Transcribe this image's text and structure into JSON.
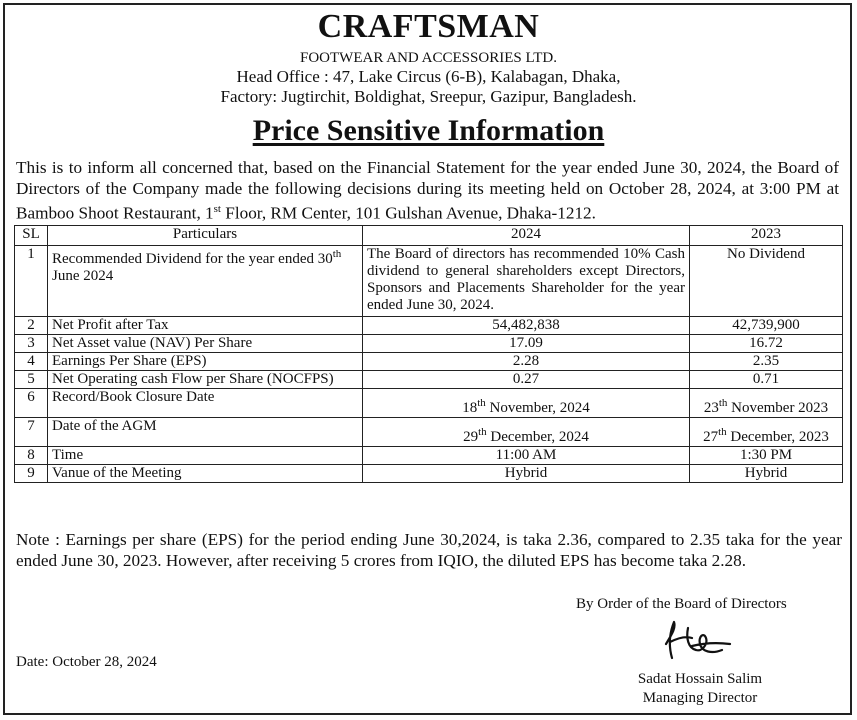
{
  "header": {
    "company_name": "CRAFTSMAN",
    "company_sub": "FOOTWEAR AND ACCESSORIES LTD.",
    "address_line1": "Head Office : 47, Lake Circus (6-B), Kalabagan, Dhaka,",
    "address_line2": "Factory: Jugtirchit, Boldighat, Sreepur, Gazipur, Bangladesh."
  },
  "title": "Price Sensitive Information",
  "intro": {
    "part1": "This is to inform all concerned that, based on the Financial Statement for the year ended June 30, 2024, the Board of Directors of the Company made the following decisions during its meeting held on October 28, 2024, at 3:00 PM at Bamboo Shoot Restaurant, 1",
    "sup": "st",
    "part2": " Floor, RM Center, 101 Gulshan Avenue, Dhaka-1212."
  },
  "table": {
    "headers": [
      "SL",
      "Particulars",
      "2024",
      "2023"
    ],
    "rows": [
      {
        "sl": "1",
        "particular_pre": "Recommended Dividend for the year ended 30",
        "particular_sup": "th",
        "particular_post": " June 2024",
        "v2024": "The Board of directors has recommended 10% Cash dividend to general shareholders except Directors, Sponsors and Placements Shareholder for the year ended June 30, 2024.",
        "v2023": "No Dividend"
      },
      {
        "sl": "2",
        "particular": "Net Profit after Tax",
        "v2024": "54,482,838",
        "v2023": "42,739,900"
      },
      {
        "sl": "3",
        "particular": "Net Asset value (NAV) Per Share",
        "v2024": "17.09",
        "v2023": "16.72"
      },
      {
        "sl": "4",
        "particular": "Earnings Per Share (EPS)",
        "v2024": "2.28",
        "v2023": "2.35"
      },
      {
        "sl": "5",
        "particular": "Net Operating cash Flow per Share (NOCFPS)",
        "v2024": "0.27",
        "v2023": "0.71"
      },
      {
        "sl": "6",
        "particular": "Record/Book Closure Date",
        "v2024_pre": "18",
        "v2024_sup": "th",
        "v2024_post": " November, 2024",
        "v2023_pre": "23",
        "v2023_sup": "th",
        "v2023_post": " November 2023"
      },
      {
        "sl": "7",
        "particular": "Date of the AGM",
        "v2024_pre": "29",
        "v2024_sup": "th",
        "v2024_post": " December, 2024",
        "v2023_pre": "27",
        "v2023_sup": "th",
        "v2023_post": " December, 2023"
      },
      {
        "sl": "8",
        "particular": "Time",
        "v2024": "11:00 AM",
        "v2023": "1:30 PM"
      },
      {
        "sl": "9",
        "particular": "Vanue of the Meeting",
        "v2024": "Hybrid",
        "v2023": "Hybrid"
      }
    ]
  },
  "note": "Note : Earnings per share (EPS) for the period ending June 30,2024, is taka 2.36, compared to 2.35 taka for the year ended June 30, 2023. However, after receiving 5 crores from IQIO, the diluted EPS has become taka 2.28.",
  "footer": {
    "by_order": "By Order of the Board of Directors",
    "date": "Date: October 28, 2024",
    "signer_name": "Sadat Hossain Salim",
    "signer_title": "Managing Director"
  }
}
